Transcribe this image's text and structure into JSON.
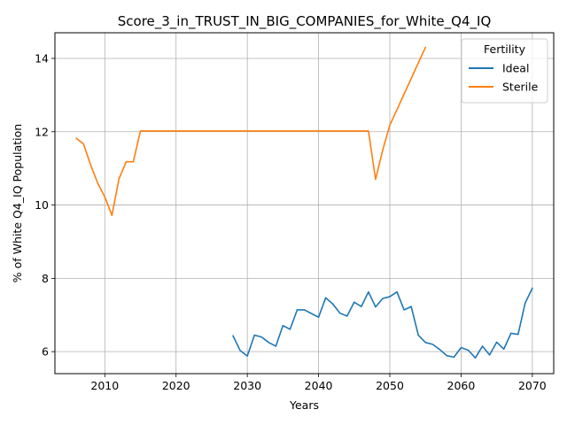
{
  "chart_data": {
    "type": "line",
    "title": "Score_3_in_TRUST_IN_BIG_COMPANIES_for_White_Q4_IQ",
    "xlabel": "Years",
    "ylabel": "% of White Q4_IQ Population",
    "xlim": [
      2003,
      2073
    ],
    "ylim": [
      5.4,
      14.7
    ],
    "xticks": [
      2010,
      2020,
      2030,
      2040,
      2050,
      2060,
      2070
    ],
    "yticks": [
      6,
      8,
      10,
      12,
      14
    ],
    "grid": true,
    "legend": {
      "title": "Fertility",
      "placement": "top-right"
    },
    "series": [
      {
        "name": "Ideal",
        "color": "#1f77b4",
        "x": [
          2028,
          2029,
          2030,
          2031,
          2032,
          2033,
          2034,
          2035,
          2036,
          2037,
          2038,
          2039,
          2040,
          2041,
          2042,
          2043,
          2044,
          2045,
          2046,
          2047,
          2048,
          2049,
          2050,
          2051,
          2052,
          2053,
          2054,
          2055,
          2056,
          2057,
          2058,
          2059,
          2060,
          2061,
          2062,
          2063,
          2064,
          2065,
          2066,
          2067,
          2068,
          2069,
          2070
        ],
        "values": [
          6.43,
          6.03,
          5.88,
          6.45,
          6.4,
          6.25,
          6.15,
          6.71,
          6.61,
          7.14,
          7.14,
          7.04,
          6.94,
          7.47,
          7.3,
          7.05,
          6.97,
          7.35,
          7.23,
          7.63,
          7.22,
          7.45,
          7.5,
          7.63,
          7.14,
          7.23,
          6.45,
          6.25,
          6.2,
          6.06,
          5.89,
          5.85,
          6.11,
          6.04,
          5.83,
          6.15,
          5.91,
          6.26,
          6.07,
          6.5,
          6.47,
          7.33,
          7.73
        ]
      },
      {
        "name": "Sterile",
        "color": "#ff7f0e",
        "x": [
          2006,
          2007,
          2008,
          2009,
          2010,
          2011,
          2012,
          2013,
          2014,
          2015,
          2016,
          2017,
          2018,
          2019,
          2020,
          2021,
          2022,
          2023,
          2024,
          2025,
          2026,
          2027,
          2028,
          2029,
          2030,
          2031,
          2032,
          2033,
          2034,
          2035,
          2036,
          2037,
          2038,
          2039,
          2040,
          2041,
          2042,
          2043,
          2044,
          2045,
          2046,
          2047,
          2048,
          2049,
          2050,
          2051,
          2052,
          2053,
          2054,
          2055
        ],
        "values": [
          11.82,
          11.67,
          11.1,
          10.6,
          10.22,
          9.72,
          10.72,
          11.18,
          11.18,
          12.02,
          12.02,
          12.02,
          12.02,
          12.02,
          12.02,
          12.02,
          12.02,
          12.02,
          12.02,
          12.02,
          12.02,
          12.02,
          12.02,
          12.02,
          12.02,
          12.02,
          12.02,
          12.02,
          12.02,
          12.02,
          12.02,
          12.02,
          12.02,
          12.02,
          12.02,
          12.02,
          12.02,
          12.02,
          12.02,
          12.02,
          12.02,
          12.02,
          10.7,
          11.5,
          12.18,
          12.6,
          13.03,
          13.45,
          13.88,
          14.3
        ]
      }
    ]
  }
}
